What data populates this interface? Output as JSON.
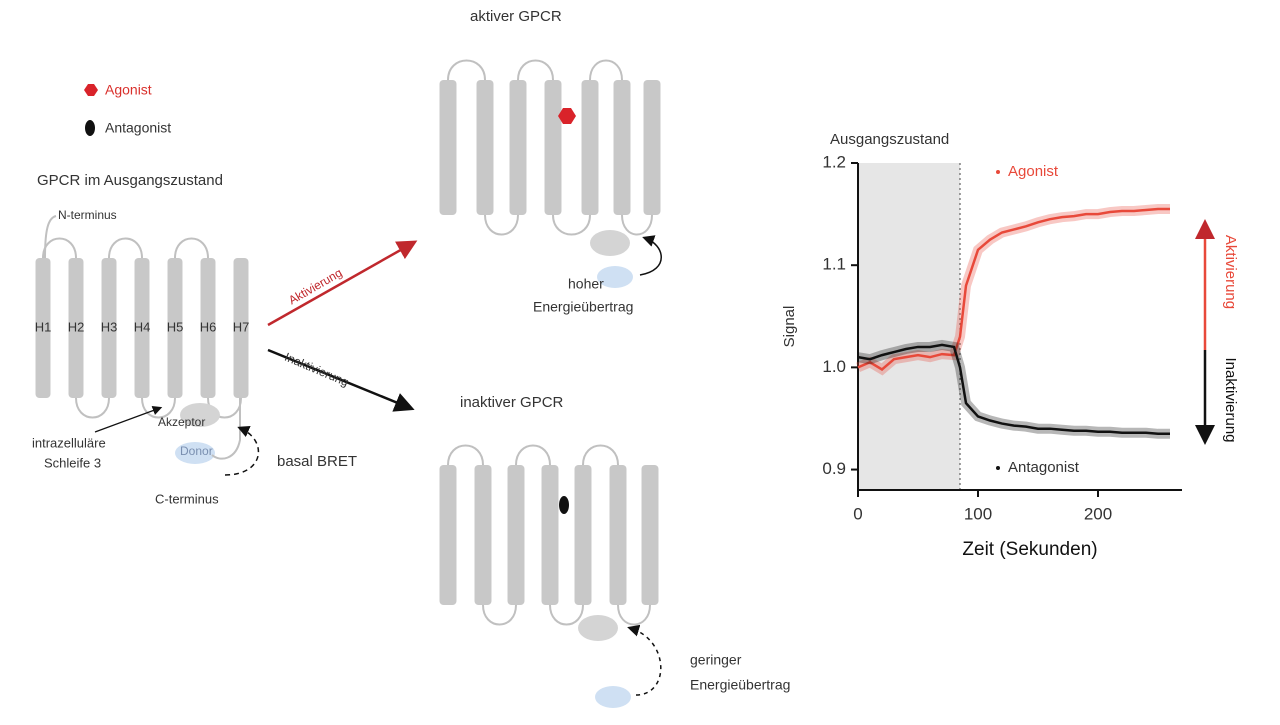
{
  "legend": {
    "agonist": "Agonist",
    "antagonist": "Antagonist"
  },
  "basal": {
    "title": "GPCR im Ausgangszustand",
    "n_terminus": "N-terminus",
    "helices": [
      "H1",
      "H2",
      "H3",
      "H4",
      "H5",
      "H6",
      "H7"
    ],
    "acceptor": "Akzeptor",
    "loop": [
      "intrazelluläre",
      "Schleife 3"
    ],
    "donor": "Donor",
    "c_terminus": "C-terminus",
    "bret": "basal BRET"
  },
  "arrows": {
    "activation": "Aktivierung",
    "inactivation": "Inaktivierung"
  },
  "active": {
    "title": "aktiver GPCR",
    "transfer": [
      "hoher",
      "Energieübertrag"
    ]
  },
  "inactive": {
    "title": "inaktiver GPCR",
    "transfer": [
      "geringer",
      "Energieübertrag"
    ]
  },
  "chart_data": {
    "type": "line",
    "x_label": "Zeit (Sekunden)",
    "y_label": "Signal",
    "annotations": [
      "Ausgangszustand",
      "Aktivierung",
      "Inaktivierung"
    ],
    "baseline_region": [
      0,
      85
    ],
    "x": [
      0,
      10,
      20,
      30,
      40,
      50,
      60,
      70,
      80,
      85,
      90,
      100,
      110,
      120,
      130,
      140,
      150,
      160,
      170,
      180,
      190,
      200,
      210,
      220,
      230,
      240,
      250,
      260
    ],
    "series": [
      {
        "name": "Agonist",
        "color": "#e8493a",
        "values": [
          1.0,
          1.005,
          0.998,
          1.008,
          1.01,
          1.012,
          1.01,
          1.013,
          1.012,
          1.03,
          1.08,
          1.115,
          1.125,
          1.132,
          1.135,
          1.138,
          1.142,
          1.145,
          1.147,
          1.148,
          1.15,
          1.15,
          1.152,
          1.153,
          1.153,
          1.154,
          1.155,
          1.155
        ]
      },
      {
        "name": "Antagonist",
        "color": "#111111",
        "values": [
          1.01,
          1.008,
          1.012,
          1.015,
          1.018,
          1.02,
          1.02,
          1.022,
          1.02,
          1.0,
          0.965,
          0.952,
          0.948,
          0.945,
          0.943,
          0.942,
          0.94,
          0.94,
          0.939,
          0.938,
          0.938,
          0.937,
          0.937,
          0.936,
          0.936,
          0.936,
          0.935,
          0.935
        ]
      }
    ],
    "xlim": [
      0,
      270
    ],
    "ylim": [
      0.88,
      1.2
    ],
    "xticks": [
      0,
      100,
      200
    ],
    "yticks": [
      0.9,
      {
        "value": 1,
        "label": "1.0"
      },
      1.1,
      1.2
    ]
  }
}
